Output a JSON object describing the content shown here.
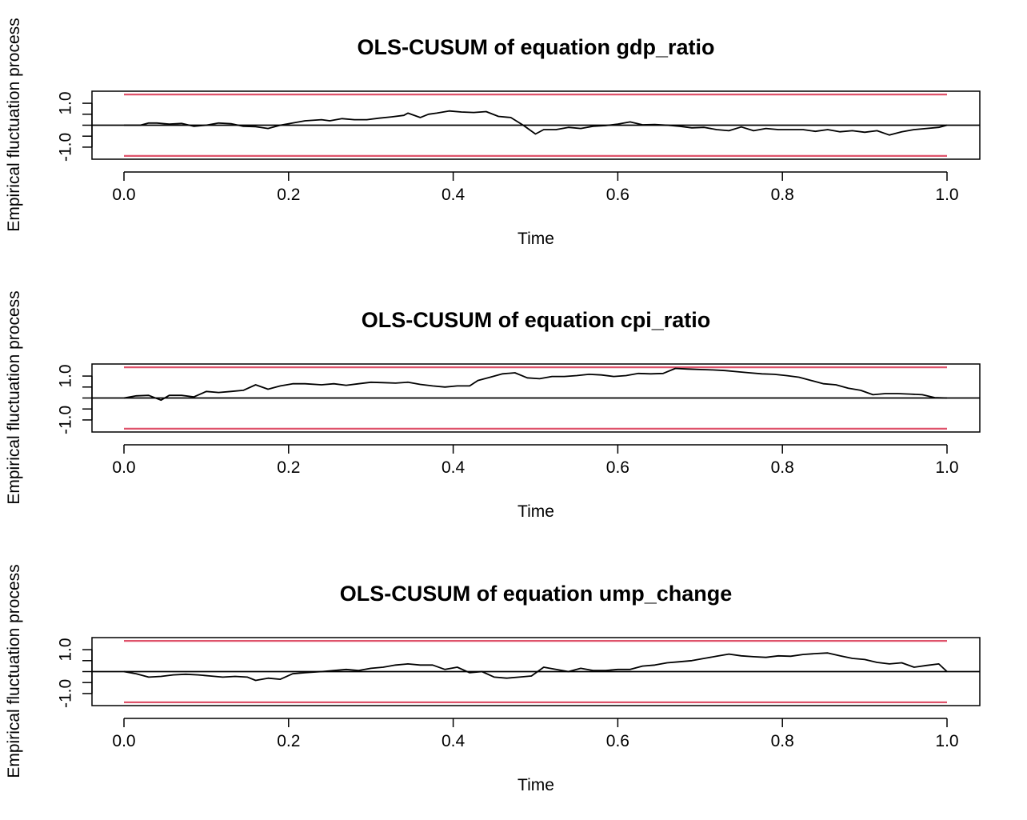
{
  "colors": {
    "series": "#000000",
    "boundary": "#DF536B",
    "zero_line": "#000000",
    "box": "#000000"
  },
  "chart_data": [
    {
      "type": "line",
      "title": "OLS-CUSUM of equation gdp_ratio",
      "xlabel": "Time",
      "ylabel": "Empirical fluctuation process",
      "xlim": [
        0.0,
        1.0
      ],
      "ylim": [
        -1.55,
        1.55
      ],
      "xticks": [
        "0.0",
        "0.2",
        "0.4",
        "0.6",
        "0.8",
        "1.0"
      ],
      "yticks": [
        "-1.0",
        "1.0"
      ],
      "boundary": 1.4,
      "grid": false,
      "x": [
        0,
        0.02,
        0.03,
        0.04,
        0.055,
        0.07,
        0.085,
        0.1,
        0.115,
        0.13,
        0.145,
        0.16,
        0.175,
        0.19,
        0.205,
        0.22,
        0.24,
        0.25,
        0.265,
        0.28,
        0.295,
        0.31,
        0.325,
        0.34,
        0.345,
        0.36,
        0.37,
        0.38,
        0.395,
        0.41,
        0.425,
        0.44,
        0.455,
        0.47,
        0.485,
        0.5,
        0.51,
        0.525,
        0.54,
        0.555,
        0.57,
        0.585,
        0.6,
        0.615,
        0.63,
        0.645,
        0.66,
        0.675,
        0.69,
        0.705,
        0.72,
        0.735,
        0.75,
        0.765,
        0.78,
        0.795,
        0.81,
        0.825,
        0.84,
        0.855,
        0.87,
        0.885,
        0.9,
        0.915,
        0.93,
        0.945,
        0.96,
        0.975,
        0.99,
        1.0
      ],
      "values": [
        0.0,
        0.0,
        0.1,
        0.1,
        0.05,
        0.08,
        -0.05,
        0.0,
        0.1,
        0.07,
        -0.05,
        -0.07,
        -0.15,
        0.0,
        0.1,
        0.2,
        0.25,
        0.2,
        0.3,
        0.25,
        0.25,
        0.32,
        0.38,
        0.45,
        0.55,
        0.35,
        0.5,
        0.55,
        0.65,
        0.6,
        0.58,
        0.62,
        0.4,
        0.35,
        0.0,
        -0.4,
        -0.2,
        -0.2,
        -0.1,
        -0.15,
        -0.05,
        -0.02,
        0.05,
        0.15,
        0.02,
        0.03,
        0.0,
        -0.05,
        -0.12,
        -0.1,
        -0.2,
        -0.25,
        -0.08,
        -0.25,
        -0.15,
        -0.2,
        -0.2,
        -0.2,
        -0.28,
        -0.2,
        -0.3,
        -0.25,
        -0.32,
        -0.25,
        -0.45,
        -0.3,
        -0.2,
        -0.15,
        -0.1,
        0.0
      ]
    },
    {
      "type": "line",
      "title": "OLS-CUSUM of equation cpi_ratio",
      "xlabel": "Time",
      "ylabel": "Empirical fluctuation process",
      "xlim": [
        0.0,
        1.0
      ],
      "ylim": [
        -1.55,
        1.55
      ],
      "xticks": [
        "0.0",
        "0.2",
        "0.4",
        "0.6",
        "0.8",
        "1.0"
      ],
      "yticks": [
        "-1.0",
        "1.0"
      ],
      "boundary": 1.4,
      "grid": false,
      "x": [
        0,
        0.015,
        0.03,
        0.045,
        0.055,
        0.07,
        0.085,
        0.1,
        0.115,
        0.13,
        0.145,
        0.16,
        0.175,
        0.19,
        0.205,
        0.22,
        0.24,
        0.255,
        0.27,
        0.285,
        0.3,
        0.315,
        0.33,
        0.345,
        0.36,
        0.375,
        0.39,
        0.405,
        0.42,
        0.43,
        0.445,
        0.46,
        0.475,
        0.49,
        0.505,
        0.52,
        0.535,
        0.55,
        0.565,
        0.58,
        0.595,
        0.61,
        0.625,
        0.64,
        0.655,
        0.67,
        0.685,
        0.7,
        0.715,
        0.73,
        0.745,
        0.76,
        0.775,
        0.79,
        0.805,
        0.82,
        0.835,
        0.85,
        0.865,
        0.88,
        0.895,
        0.91,
        0.925,
        0.94,
        0.955,
        0.97,
        0.985,
        1.0
      ],
      "values": [
        0.0,
        0.1,
        0.12,
        -0.1,
        0.12,
        0.12,
        0.05,
        0.3,
        0.25,
        0.3,
        0.35,
        0.6,
        0.4,
        0.55,
        0.65,
        0.65,
        0.6,
        0.65,
        0.58,
        0.65,
        0.72,
        0.7,
        0.68,
        0.72,
        0.62,
        0.55,
        0.5,
        0.55,
        0.55,
        0.8,
        0.95,
        1.1,
        1.15,
        0.92,
        0.88,
        0.98,
        0.98,
        1.02,
        1.08,
        1.05,
        0.98,
        1.02,
        1.12,
        1.1,
        1.12,
        1.35,
        1.32,
        1.3,
        1.28,
        1.25,
        1.2,
        1.15,
        1.1,
        1.08,
        1.02,
        0.95,
        0.8,
        0.65,
        0.6,
        0.45,
        0.35,
        0.15,
        0.2,
        0.2,
        0.18,
        0.15,
        0.02,
        0.0
      ]
    },
    {
      "type": "line",
      "title": "OLS-CUSUM of equation ump_change",
      "xlabel": "Time",
      "ylabel": "Empirical fluctuation process",
      "xlim": [
        0.0,
        1.0
      ],
      "ylim": [
        -1.55,
        1.55
      ],
      "xticks": [
        "0.0",
        "0.2",
        "0.4",
        "0.6",
        "0.8",
        "1.0"
      ],
      "yticks": [
        "-1.0",
        "1.0"
      ],
      "boundary": 1.4,
      "grid": false,
      "x": [
        0,
        0.015,
        0.03,
        0.045,
        0.06,
        0.075,
        0.09,
        0.105,
        0.12,
        0.135,
        0.15,
        0.16,
        0.175,
        0.19,
        0.205,
        0.22,
        0.24,
        0.255,
        0.27,
        0.285,
        0.3,
        0.315,
        0.33,
        0.345,
        0.36,
        0.375,
        0.39,
        0.405,
        0.42,
        0.435,
        0.45,
        0.465,
        0.48,
        0.495,
        0.51,
        0.525,
        0.54,
        0.555,
        0.57,
        0.585,
        0.6,
        0.615,
        0.63,
        0.645,
        0.66,
        0.675,
        0.69,
        0.705,
        0.72,
        0.735,
        0.75,
        0.765,
        0.78,
        0.795,
        0.81,
        0.825,
        0.84,
        0.855,
        0.87,
        0.885,
        0.9,
        0.915,
        0.93,
        0.945,
        0.96,
        0.975,
        0.99,
        1.0
      ],
      "values": [
        0.0,
        -0.1,
        -0.25,
        -0.22,
        -0.15,
        -0.12,
        -0.15,
        -0.2,
        -0.25,
        -0.22,
        -0.25,
        -0.4,
        -0.3,
        -0.35,
        -0.1,
        -0.05,
        0.0,
        0.05,
        0.1,
        0.05,
        0.15,
        0.2,
        0.3,
        0.35,
        0.3,
        0.3,
        0.1,
        0.2,
        -0.05,
        0.0,
        -0.25,
        -0.3,
        -0.25,
        -0.2,
        0.2,
        0.1,
        0.0,
        0.15,
        0.05,
        0.05,
        0.1,
        0.1,
        0.25,
        0.3,
        0.4,
        0.45,
        0.5,
        0.6,
        0.7,
        0.8,
        0.72,
        0.68,
        0.65,
        0.72,
        0.7,
        0.78,
        0.82,
        0.85,
        0.72,
        0.6,
        0.55,
        0.42,
        0.35,
        0.4,
        0.2,
        0.28,
        0.35,
        0.0
      ]
    }
  ]
}
